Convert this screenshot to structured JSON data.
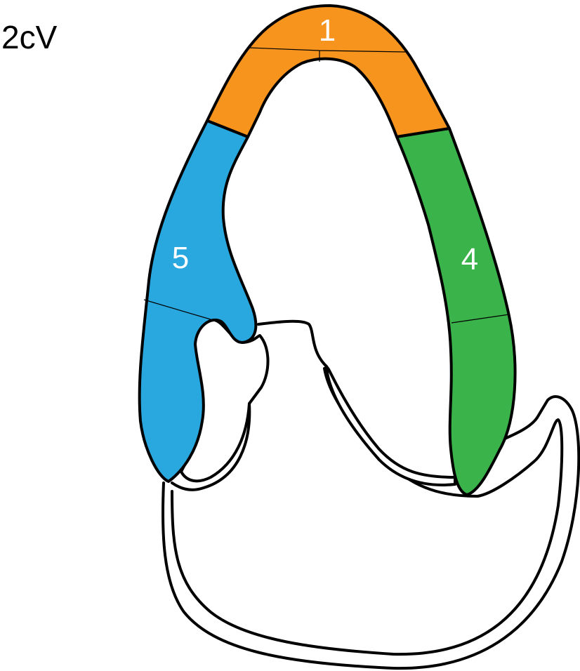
{
  "view_label": "2cV",
  "segments": [
    {
      "label": "1",
      "color": "#F7941E"
    },
    {
      "label": "5",
      "color": "#29A8E0"
    },
    {
      "label": "4",
      "color": "#39B34A"
    }
  ]
}
